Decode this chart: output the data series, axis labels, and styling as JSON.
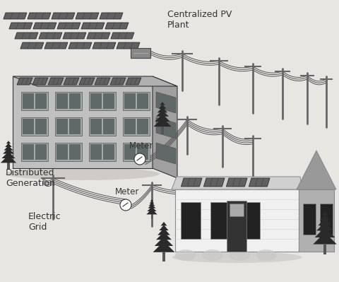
{
  "bg_color": "#e8e6e3",
  "labels": {
    "centralized_pv": "Centralized PV\nPlant",
    "distributed_generation": "Distributed\nGeneration",
    "electric_grid": "Electric\nGrid",
    "meter1": "Meter",
    "meter2": "Meter"
  },
  "font_size": 8.5,
  "line_color": "#555555",
  "dark_color": "#333333",
  "pole_color": "#666666",
  "panel_dark": "#404040",
  "panel_mid": "#606060",
  "panel_light": "#909090",
  "building_face": "#c0c0c0",
  "building_side": "#a0a0a0",
  "building_roof": "#b0b0b0",
  "building_win": "#888888",
  "house_body": "#f0f0f0",
  "house_gable": "#909090",
  "house_roof": "#c0c0c0",
  "house_win": "#222222",
  "tree_dark": "#2a2a2a",
  "tree_mid": "#505050",
  "shadow_color": "#c0bdb8",
  "meter_bg": "#ffffff"
}
